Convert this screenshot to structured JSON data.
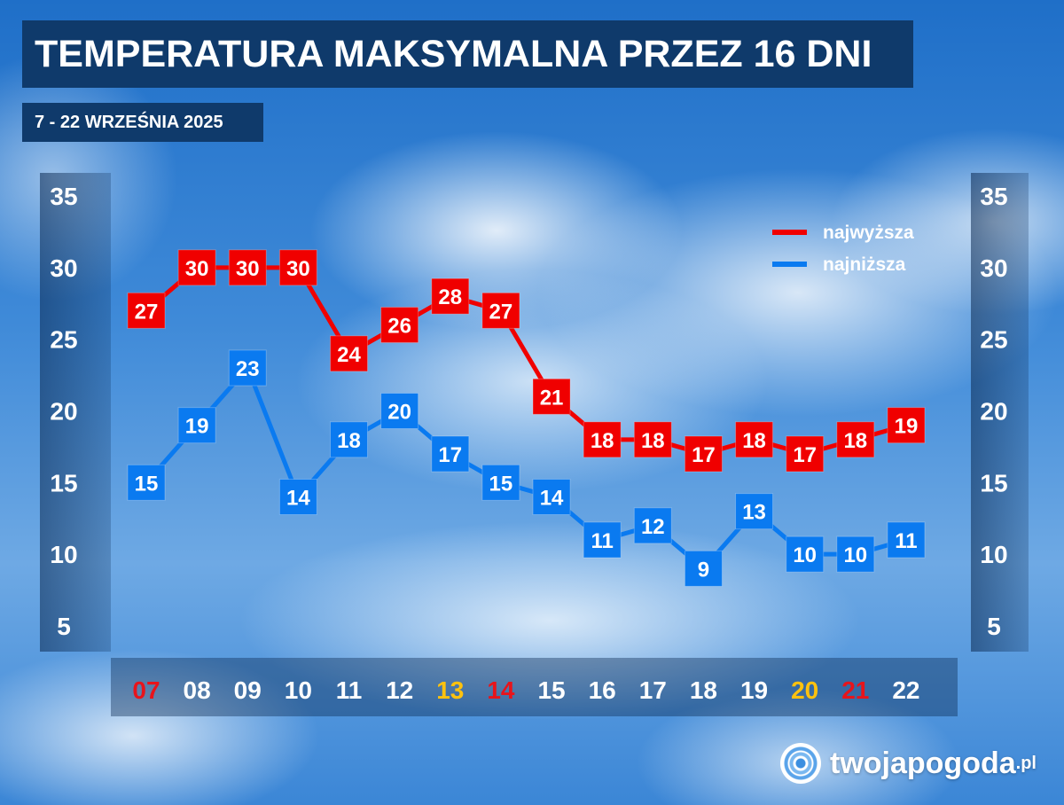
{
  "title": "TEMPERATURA MAKSYMALNA PRZEZ 16 DNI",
  "subtitle": "7 - 22 WRZEŚNIA 2025",
  "brand": {
    "name": "twojapogoda",
    "tld": ".pl"
  },
  "chart_data": {
    "type": "line",
    "categories": [
      "07",
      "08",
      "09",
      "10",
      "11",
      "12",
      "13",
      "14",
      "15",
      "16",
      "17",
      "18",
      "19",
      "20",
      "21",
      "22"
    ],
    "category_colors": [
      "#e8141b",
      "#ffffff",
      "#ffffff",
      "#ffffff",
      "#ffffff",
      "#ffffff",
      "#ffc20e",
      "#e8141b",
      "#ffffff",
      "#ffffff",
      "#ffffff",
      "#ffffff",
      "#ffffff",
      "#ffc20e",
      "#e8141b",
      "#ffffff"
    ],
    "ylim": [
      5,
      35
    ],
    "yticks": [
      35,
      30,
      25,
      20,
      15,
      10,
      5
    ],
    "legend_position": "top-right",
    "series": [
      {
        "name": "najwyższa",
        "color": "#f00000",
        "values": [
          27,
          30,
          30,
          30,
          24,
          26,
          28,
          27,
          21,
          18,
          18,
          17,
          18,
          17,
          18,
          19
        ]
      },
      {
        "name": "najniższa",
        "color": "#0a7af0",
        "values": [
          15,
          19,
          23,
          14,
          18,
          20,
          17,
          15,
          14,
          11,
          12,
          9,
          13,
          10,
          10,
          11
        ]
      }
    ]
  }
}
